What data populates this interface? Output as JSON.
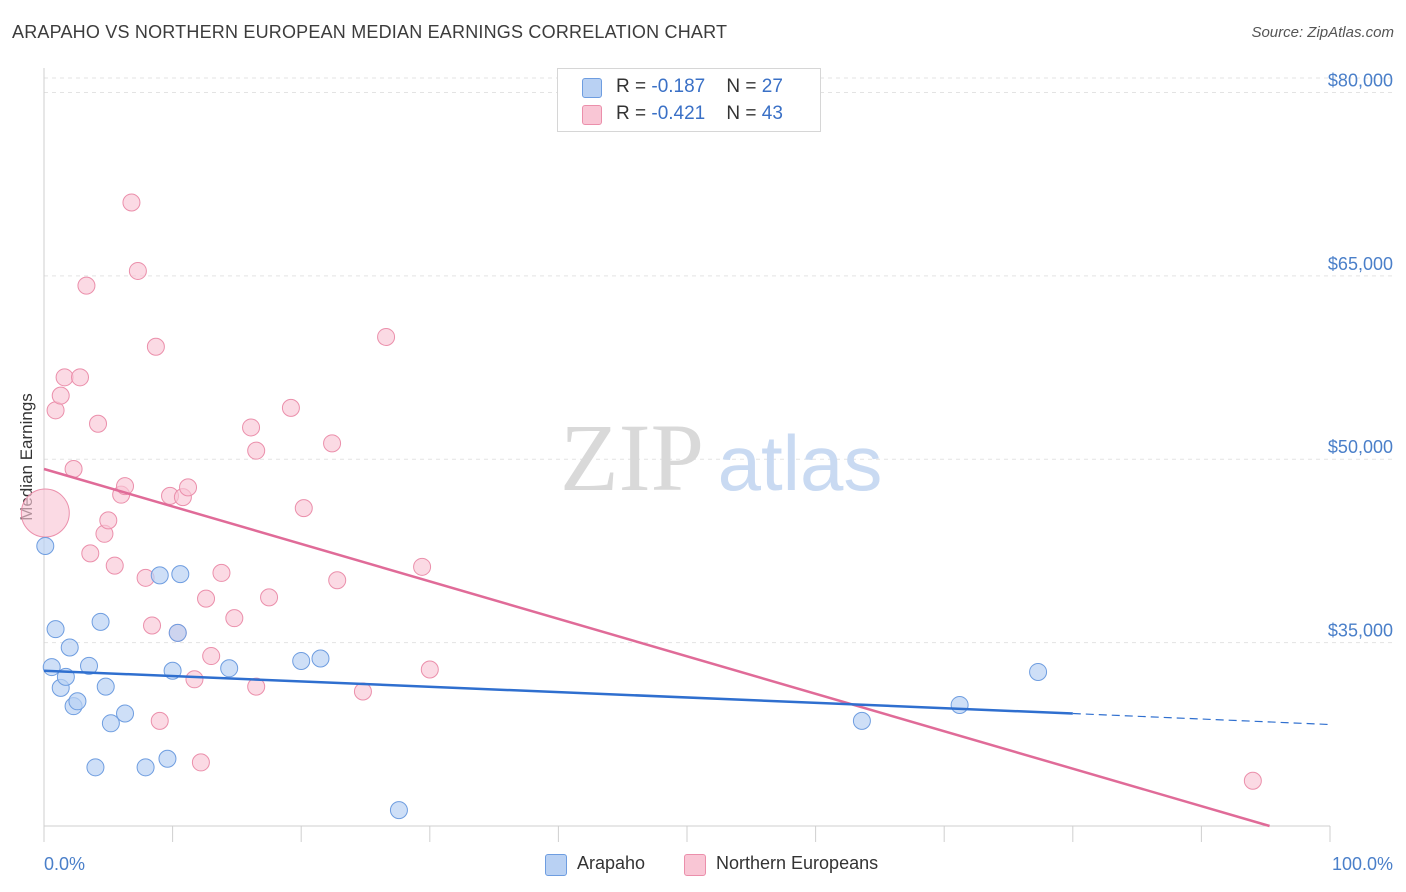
{
  "title": "ARAPAHO VS NORTHERN EUROPEAN MEDIAN EARNINGS CORRELATION CHART",
  "source": "Source: ZipAtlas.com",
  "watermark": {
    "zip": "ZIP",
    "atlas": "atlas"
  },
  "legend": {
    "rows": [
      {
        "r_label": "R = ",
        "r_value": "-0.187",
        "n_label": "N = ",
        "n_value": "27"
      },
      {
        "r_label": "R = ",
        "r_value": "-0.421",
        "n_label": "N = ",
        "n_value": "43"
      }
    ]
  },
  "bottom_legend": [
    "Arapaho",
    "Northern Europeans"
  ],
  "colors": {
    "blue_fill": "#b9d1f3",
    "blue_stroke": "#6e9de0",
    "blue_line": "#2f6fcf",
    "pink_fill": "#f9c6d5",
    "pink_stroke": "#eb8fab",
    "pink_line": "#e06b98",
    "tick_text": "#4a7fc9",
    "grid": "#e3e3e3"
  },
  "chart_data": {
    "type": "scatter",
    "title": "ARAPAHO VS NORTHERN EUROPEAN MEDIAN EARNINGS CORRELATION CHART",
    "xlabel": "",
    "ylabel": "Median Earnings",
    "xlim": [
      0,
      100
    ],
    "ylim": [
      20000,
      82000
    ],
    "x_tick_labels": [
      "0.0%",
      "100.0%"
    ],
    "y_ticks": [
      35000,
      50000,
      65000,
      80000
    ],
    "y_tick_labels": [
      "$35,000",
      "$50,000",
      "$65,000",
      "$80,000"
    ],
    "grid": true,
    "legend_position": "top-center",
    "series": [
      {
        "name": "Arapaho",
        "color": "#b9d1f3",
        "points": [
          [
            0.1,
            42900
          ],
          [
            0.6,
            33000
          ],
          [
            0.9,
            36100
          ],
          [
            1.3,
            31300
          ],
          [
            1.7,
            32200
          ],
          [
            2.0,
            34600
          ],
          [
            2.3,
            29800
          ],
          [
            2.6,
            30200
          ],
          [
            3.5,
            33100
          ],
          [
            4.0,
            24800
          ],
          [
            4.4,
            36700
          ],
          [
            4.8,
            31400
          ],
          [
            5.2,
            28400
          ],
          [
            6.3,
            29200
          ],
          [
            7.9,
            24800
          ],
          [
            9.0,
            40500
          ],
          [
            9.6,
            25500
          ],
          [
            10.0,
            32700
          ],
          [
            10.4,
            35800
          ],
          [
            10.6,
            40600
          ],
          [
            14.4,
            32900
          ],
          [
            20.0,
            33500
          ],
          [
            21.5,
            33700
          ],
          [
            27.6,
            21300
          ],
          [
            63.6,
            28600
          ],
          [
            71.2,
            29900
          ],
          [
            77.3,
            32600
          ]
        ],
        "trend": {
          "x": [
            0,
            80
          ],
          "y": [
            32700,
            29200
          ]
        },
        "trend_dashed": {
          "x": [
            80,
            100
          ],
          "y": [
            29200,
            28300
          ]
        }
      },
      {
        "name": "Northern Europeans",
        "color": "#f9c6d5",
        "points": [
          [
            0.1,
            45600
          ],
          [
            0.9,
            54000
          ],
          [
            1.3,
            55200
          ],
          [
            1.6,
            56700
          ],
          [
            2.3,
            49200
          ],
          [
            2.8,
            56700
          ],
          [
            3.3,
            64200
          ],
          [
            3.6,
            42300
          ],
          [
            4.2,
            52900
          ],
          [
            4.7,
            43900
          ],
          [
            5.0,
            45000
          ],
          [
            5.5,
            41300
          ],
          [
            6.0,
            47100
          ],
          [
            6.3,
            47800
          ],
          [
            6.8,
            71000
          ],
          [
            7.3,
            65400
          ],
          [
            7.9,
            40300
          ],
          [
            8.4,
            36400
          ],
          [
            8.7,
            59200
          ],
          [
            9.0,
            28600
          ],
          [
            9.8,
            47000
          ],
          [
            10.4,
            35800
          ],
          [
            10.8,
            46900
          ],
          [
            11.2,
            47700
          ],
          [
            11.7,
            32000
          ],
          [
            12.2,
            25200
          ],
          [
            12.6,
            38600
          ],
          [
            13.0,
            33900
          ],
          [
            13.8,
            40700
          ],
          [
            14.8,
            37000
          ],
          [
            16.1,
            52600
          ],
          [
            16.5,
            50700
          ],
          [
            16.5,
            31400
          ],
          [
            17.5,
            38700
          ],
          [
            19.2,
            54200
          ],
          [
            20.2,
            46000
          ],
          [
            22.4,
            51300
          ],
          [
            22.8,
            40100
          ],
          [
            24.8,
            31000
          ],
          [
            26.6,
            60000
          ],
          [
            29.4,
            41200
          ],
          [
            30.0,
            32800
          ],
          [
            94.0,
            23700
          ]
        ],
        "trend": {
          "x": [
            0,
            95.3
          ],
          "y": [
            49200,
            20000
          ]
        }
      }
    ]
  }
}
